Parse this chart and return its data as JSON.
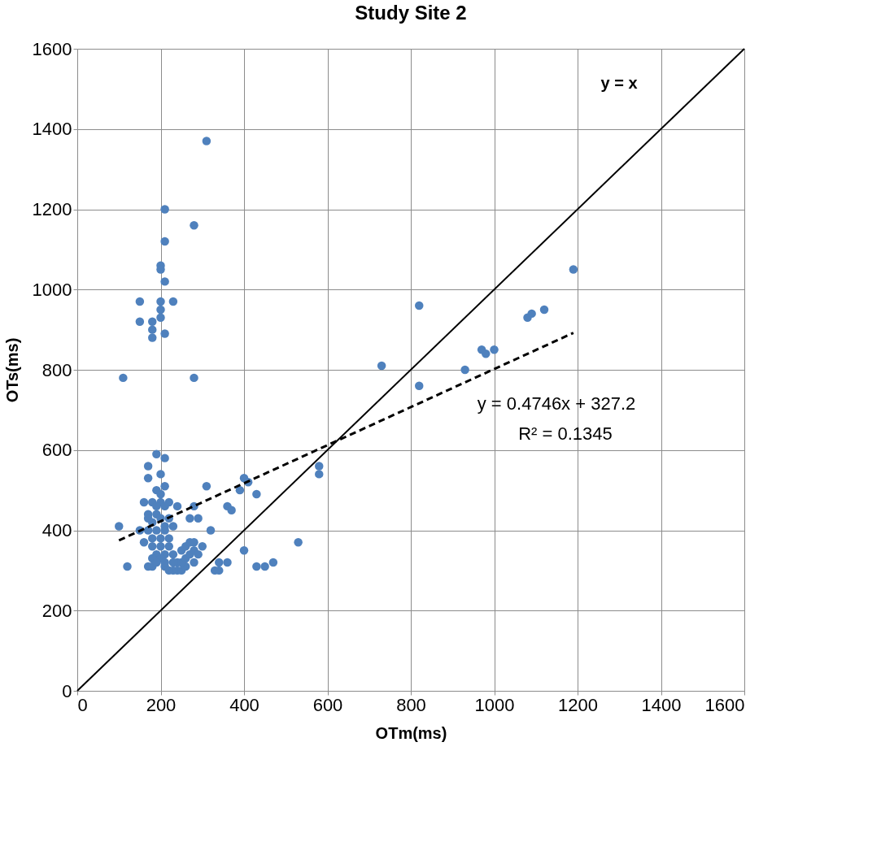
{
  "chart_data": {
    "type": "scatter",
    "title": "Study Site 2",
    "xlabel": "OTm(ms)",
    "ylabel": "OTs(ms)",
    "xlim": [
      0,
      1600
    ],
    "ylim": [
      0,
      1600
    ],
    "xticks": [
      0,
      200,
      400,
      600,
      800,
      1000,
      1200,
      1400,
      1600
    ],
    "yticks": [
      0,
      200,
      400,
      600,
      800,
      1000,
      1200,
      1400,
      1600
    ],
    "grid": true,
    "marker": "circle",
    "series": [
      {
        "color": "#4f81bd",
        "x": [
          310,
          210,
          280,
          210,
          200,
          200,
          210,
          150,
          200,
          230,
          200,
          200,
          150,
          180,
          180,
          180,
          210,
          110,
          280,
          730,
          820,
          820,
          930,
          970,
          980,
          1000,
          1080,
          1090,
          1120,
          1190,
          580,
          580,
          530,
          400,
          410,
          390,
          430,
          400,
          430,
          450,
          470,
          360,
          370,
          310,
          320,
          280,
          270,
          290,
          360,
          340,
          330,
          340,
          100,
          120,
          150,
          160,
          170,
          170,
          190,
          210,
          200,
          210,
          190,
          200,
          180,
          200,
          220,
          190,
          210,
          240,
          170,
          190,
          170,
          200,
          220,
          180,
          210,
          230,
          170,
          190,
          210,
          160,
          180,
          200,
          220,
          180,
          200,
          220,
          190,
          210,
          230,
          180,
          200,
          170,
          180,
          210,
          220,
          230,
          240,
          250,
          260,
          240,
          250,
          260,
          270,
          250,
          260,
          270,
          280,
          280,
          290,
          300,
          280,
          230,
          210,
          190
        ],
        "values": [
          1370,
          1200,
          1160,
          1120,
          1060,
          1050,
          1020,
          970,
          970,
          970,
          950,
          930,
          920,
          920,
          900,
          880,
          890,
          780,
          780,
          810,
          960,
          760,
          800,
          850,
          840,
          850,
          930,
          940,
          950,
          1050,
          560,
          540,
          370,
          530,
          520,
          500,
          490,
          350,
          310,
          310,
          320,
          460,
          450,
          510,
          400,
          460,
          430,
          430,
          320,
          320,
          300,
          300,
          410,
          310,
          400,
          470,
          560,
          530,
          590,
          580,
          540,
          510,
          500,
          490,
          470,
          470,
          470,
          460,
          460,
          460,
          440,
          440,
          430,
          430,
          430,
          420,
          410,
          410,
          400,
          400,
          400,
          370,
          380,
          380,
          380,
          360,
          360,
          360,
          340,
          340,
          340,
          330,
          330,
          310,
          310,
          310,
          300,
          300,
          300,
          300,
          310,
          320,
          320,
          330,
          340,
          350,
          360,
          370,
          370,
          350,
          340,
          360,
          320,
          320,
          320,
          320
        ]
      },
      {
        "type": "line",
        "color": "#000000",
        "line_style": "solid",
        "marker": "none",
        "x": [
          0,
          1600
        ],
        "values": [
          0,
          1600
        ]
      },
      {
        "type": "line",
        "color": "#000000",
        "line_style": "dashed",
        "marker": "none",
        "x": [
          100,
          1190
        ],
        "values": [
          375,
          892
        ]
      }
    ],
    "annotations": [
      "y = x",
      "y = 0.4746x + 327.2",
      "R² = 0.1345"
    ]
  }
}
